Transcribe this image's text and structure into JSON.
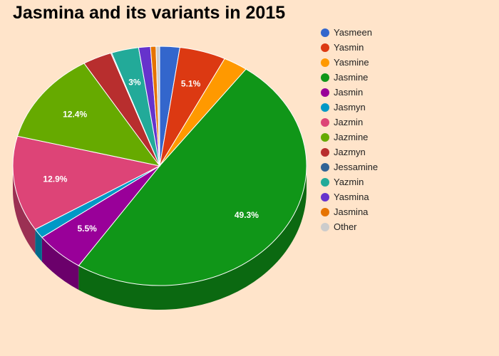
{
  "chart_data": {
    "type": "pie",
    "title": "Jasmina and its variants in 2015",
    "slices": [
      {
        "name": "Yasmeen",
        "value": 2.2,
        "color": "#3366cc",
        "label": ""
      },
      {
        "name": "Yasmin",
        "value": 5.1,
        "color": "#dc3912",
        "label": "5.1%"
      },
      {
        "name": "Yasmine",
        "value": 2.7,
        "color": "#ff9900",
        "label": ""
      },
      {
        "name": "Jasmine",
        "value": 49.3,
        "color": "#109618",
        "label": "49.3%"
      },
      {
        "name": "Jasmin",
        "value": 5.5,
        "color": "#990099",
        "label": "5.5%"
      },
      {
        "name": "Jasmyn",
        "value": 1.3,
        "color": "#0099c6",
        "label": ""
      },
      {
        "name": "Jazmin",
        "value": 12.9,
        "color": "#dd4477",
        "label": "12.9%"
      },
      {
        "name": "Jazmine",
        "value": 12.4,
        "color": "#66aa00",
        "label": "12.4%"
      },
      {
        "name": "Jazmyn",
        "value": 3.2,
        "color": "#b82e2e",
        "label": ""
      },
      {
        "name": "Jessamine",
        "value": 0.1,
        "color": "#316395",
        "label": ""
      },
      {
        "name": "Yazmin",
        "value": 3.0,
        "color": "#22aa99",
        "label": "3%"
      },
      {
        "name": "Yasmina",
        "value": 1.3,
        "color": "#6633cc",
        "label": ""
      },
      {
        "name": "Jasmina",
        "value": 0.6,
        "color": "#e67300",
        "label": ""
      },
      {
        "name": "Other",
        "value": 0.4,
        "color": "#cccccc",
        "label": ""
      }
    ],
    "legend_position": "right",
    "start_angle_deg": 0,
    "direction": "clockwise",
    "style": "3d"
  }
}
